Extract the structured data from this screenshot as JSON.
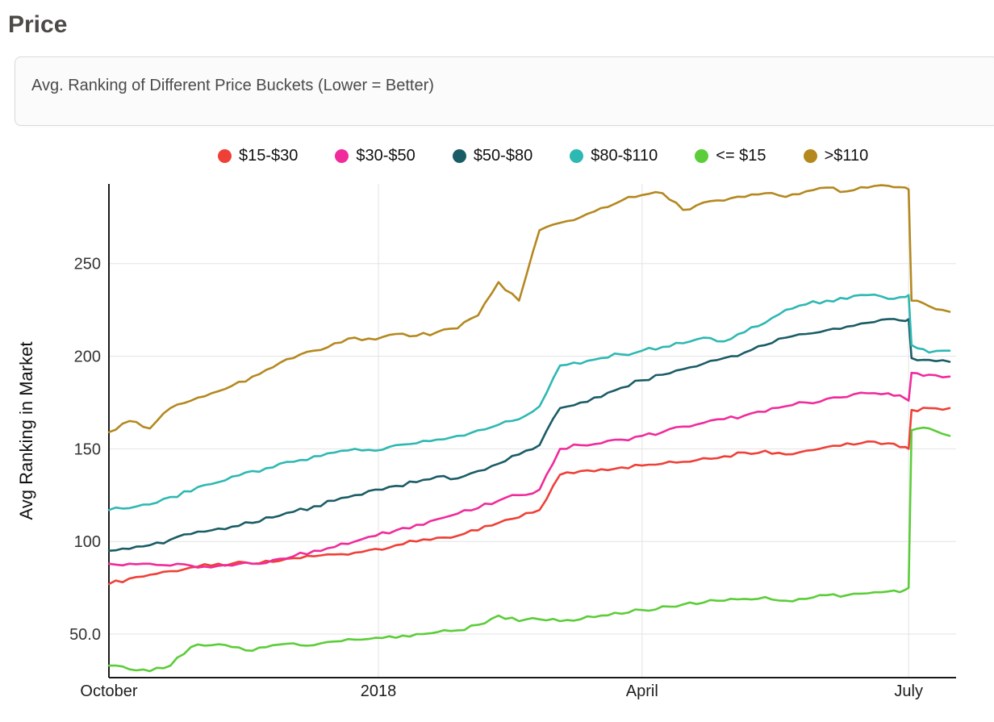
{
  "page": {
    "title": "Price"
  },
  "subtitle_box": {
    "text": "Avg. Ranking of Different Price Buckets (Lower = Better)"
  },
  "chart_data": {
    "type": "line",
    "title": "Avg. Ranking of Different Price Buckets (Lower = Better)",
    "xlabel": "",
    "ylabel": "Avg Ranking in Market",
    "legend_position": "top",
    "grid": true,
    "x_unit": "days from October start",
    "xlim": [
      0,
      287
    ],
    "ylim": [
      26.5,
      293
    ],
    "x_ticks": [
      {
        "day": 0,
        "label": "October",
        "grid": false
      },
      {
        "day": 92,
        "label": "2018",
        "grid": true
      },
      {
        "day": 182,
        "label": "April",
        "grid": true
      },
      {
        "day": 273,
        "label": "July",
        "grid": true
      }
    ],
    "y_ticks": [
      {
        "value": 50,
        "label": "50.0"
      },
      {
        "value": 100,
        "label": "100"
      },
      {
        "value": 150,
        "label": "150"
      },
      {
        "value": 200,
        "label": "200"
      },
      {
        "value": 250,
        "label": "250"
      }
    ],
    "x": [
      0,
      7,
      14,
      21,
      28,
      35,
      42,
      49,
      56,
      63,
      70,
      77,
      84,
      91,
      98,
      105,
      112,
      119,
      126,
      133,
      140,
      147,
      154,
      161,
      168,
      175,
      182,
      189,
      196,
      203,
      210,
      217,
      224,
      231,
      238,
      245,
      252,
      259,
      266,
      272,
      273,
      274,
      280,
      287
    ],
    "series": [
      {
        "name": "$15-$30",
        "color": "#ee4037",
        "values": [
          77,
          80,
          82,
          84,
          86,
          87,
          88,
          88,
          89,
          91,
          92,
          93,
          94,
          96,
          98,
          100,
          102,
          103,
          106,
          110,
          113,
          117,
          136,
          138,
          139,
          140,
          141,
          142,
          143,
          145,
          146,
          148,
          149,
          147,
          149,
          151,
          153,
          154,
          153,
          151,
          150,
          171,
          172,
          172
        ]
      },
      {
        "name": "$30-$50",
        "color": "#f02b9b",
        "values": [
          88,
          88,
          88,
          87,
          87,
          86,
          87,
          88,
          90,
          92,
          95,
          97,
          100,
          103,
          106,
          109,
          112,
          115,
          118,
          122,
          125,
          128,
          150,
          152,
          153,
          155,
          157,
          159,
          162,
          164,
          166,
          168,
          170,
          173,
          175,
          177,
          178,
          180,
          180,
          177,
          176,
          191,
          190,
          189
        ]
      },
      {
        "name": "$50-$80",
        "color": "#1a5c66",
        "values": [
          95,
          96,
          98,
          101,
          104,
          106,
          108,
          110,
          113,
          116,
          119,
          122,
          125,
          128,
          130,
          132,
          135,
          134,
          138,
          142,
          147,
          152,
          172,
          175,
          178,
          183,
          187,
          190,
          193,
          196,
          199,
          202,
          206,
          210,
          212,
          214,
          216,
          218,
          220,
          219,
          220,
          199,
          198,
          197
        ]
      },
      {
        "name": "$80-$110",
        "color": "#2eb8b2",
        "values": [
          117,
          118,
          120,
          124,
          127,
          131,
          135,
          138,
          140,
          143,
          146,
          148,
          150,
          149,
          152,
          153,
          155,
          157,
          160,
          163,
          166,
          173,
          195,
          196,
          199,
          201,
          203,
          205,
          207,
          210,
          208,
          213,
          218,
          225,
          228,
          230,
          231,
          233,
          231,
          232,
          233,
          206,
          202,
          203
        ]
      },
      {
        "name": "<= $15",
        "color": "#5bcd38",
        "values": [
          33,
          31,
          30,
          33,
          43,
          44,
          43,
          41,
          44,
          45,
          44,
          46,
          47,
          48,
          48,
          50,
          51,
          52,
          55,
          60,
          57,
          58,
          57,
          58,
          60,
          61,
          63,
          65,
          66,
          67,
          68,
          69,
          70,
          68,
          69,
          71,
          71,
          72,
          73,
          74,
          75,
          160,
          161,
          157
        ]
      },
      {
        "name": ">$110",
        "color": "#b4881f",
        "values": [
          159,
          165,
          161,
          172,
          176,
          180,
          184,
          189,
          194,
          199,
          203,
          207,
          210,
          209,
          212,
          211,
          213,
          215,
          222,
          240,
          230,
          268,
          272,
          275,
          280,
          284,
          287,
          288,
          279,
          283,
          284,
          286,
          288,
          286,
          289,
          291,
          289,
          291,
          292,
          291,
          290,
          230,
          227,
          224
        ]
      }
    ]
  }
}
